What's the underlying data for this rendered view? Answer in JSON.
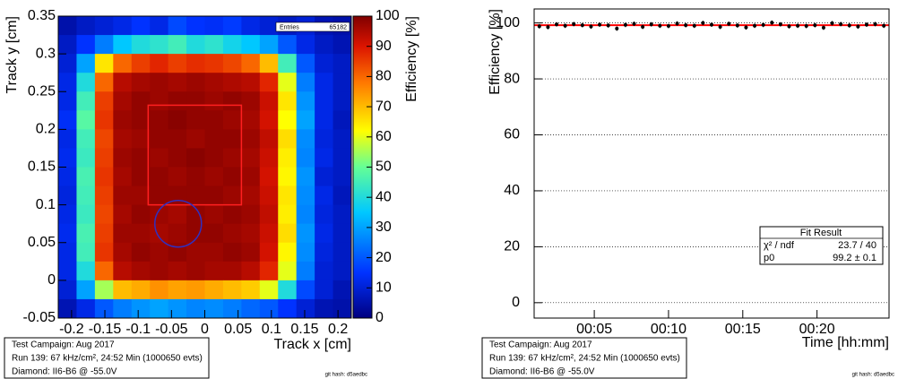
{
  "chart_data": [
    {
      "type": "heatmap",
      "xlabel": "Track x [cm]",
      "ylabel": "Track y [cm]",
      "zlabel": "Efficiency [%]",
      "xlim": [
        -0.22,
        0.22
      ],
      "ylim": [
        -0.05,
        0.35
      ],
      "zlim": [
        0,
        100
      ],
      "xticks": [
        -0.2,
        -0.15,
        -0.1,
        -0.05,
        0,
        0.05,
        0.1,
        0.15,
        0.2
      ],
      "yticks": [
        -0.05,
        0,
        0.05,
        0.1,
        0.15,
        0.2,
        0.25,
        0.3,
        0.35
      ],
      "zticks": [
        0,
        10,
        20,
        30,
        40,
        50,
        60,
        70,
        80,
        90,
        100
      ],
      "stats": {
        "label": "Entries",
        "value": 65182
      },
      "z": [
        [
          5,
          8,
          10,
          12,
          15,
          12,
          18,
          15,
          14,
          16,
          12,
          10,
          8,
          10,
          6,
          5
        ],
        [
          8,
          15,
          25,
          35,
          40,
          42,
          45,
          40,
          42,
          38,
          35,
          30,
          20,
          12,
          8,
          6
        ],
        [
          10,
          30,
          65,
          80,
          85,
          88,
          85,
          87,
          86,
          84,
          80,
          70,
          45,
          20,
          10,
          8
        ],
        [
          12,
          40,
          80,
          94,
          96,
          97,
          96,
          97,
          96,
          95,
          94,
          88,
          60,
          25,
          12,
          8
        ],
        [
          12,
          45,
          85,
          96,
          98,
          97,
          98,
          98,
          97,
          98,
          97,
          92,
          65,
          28,
          12,
          8
        ],
        [
          14,
          48,
          86,
          97,
          98,
          98,
          99,
          98,
          98,
          97,
          96,
          91,
          62,
          30,
          12,
          7
        ],
        [
          12,
          45,
          84,
          96,
          97,
          98,
          98,
          97,
          98,
          98,
          97,
          93,
          66,
          27,
          11,
          8
        ],
        [
          13,
          44,
          85,
          97,
          98,
          97,
          98,
          99,
          98,
          97,
          96,
          92,
          64,
          26,
          12,
          8
        ],
        [
          12,
          46,
          86,
          96,
          98,
          98,
          97,
          98,
          97,
          98,
          97,
          91,
          63,
          28,
          10,
          8
        ],
        [
          11,
          45,
          85,
          97,
          97,
          98,
          98,
          98,
          98,
          97,
          96,
          92,
          65,
          27,
          12,
          7
        ],
        [
          12,
          44,
          84,
          96,
          98,
          97,
          96,
          98,
          97,
          98,
          97,
          93,
          64,
          26,
          11,
          8
        ],
        [
          13,
          46,
          85,
          97,
          97,
          96,
          97,
          98,
          98,
          97,
          96,
          92,
          66,
          28,
          12,
          8
        ],
        [
          12,
          45,
          86,
          96,
          98,
          97,
          98,
          97,
          97,
          98,
          97,
          91,
          63,
          27,
          11,
          8
        ],
        [
          12,
          40,
          80,
          94,
          96,
          97,
          96,
          97,
          96,
          96,
          94,
          88,
          60,
          25,
          10,
          8
        ],
        [
          10,
          30,
          55,
          70,
          72,
          75,
          73,
          74,
          72,
          70,
          68,
          60,
          40,
          18,
          10,
          6
        ],
        [
          6,
          12,
          20,
          25,
          28,
          30,
          28,
          26,
          27,
          25,
          22,
          20,
          15,
          10,
          6,
          5
        ]
      ],
      "info": [
        "Test Campaign: Aug 2017",
        "Run 139:  67 kHz/cm², 24:52 Min (1000650 evts)",
        "Diamond: II6-B6 @ -55.0V"
      ],
      "footer": "git hash: d5aedbc"
    },
    {
      "type": "scatter",
      "xlabel": "Time [hh:mm]",
      "ylabel": "Efficiency [%]",
      "xlim": [
        0.95,
        24.85
      ],
      "ylim": [
        -5.5,
        105
      ],
      "xticks": [
        {
          "value": 5,
          "label": "00:05"
        },
        {
          "value": 10,
          "label": "00:10"
        },
        {
          "value": 15,
          "label": "00:15"
        },
        {
          "value": 20,
          "label": "00:20"
        }
      ],
      "yticks": [
        0,
        20,
        40,
        60,
        80,
        100
      ],
      "grid": true,
      "color": "#000000",
      "x": [
        1.3,
        1.88,
        2.46,
        3.04,
        3.62,
        4.2,
        4.78,
        5.36,
        5.94,
        6.52,
        7.1,
        7.68,
        8.26,
        8.84,
        9.42,
        10,
        10.58,
        11.16,
        11.74,
        12.32,
        12.9,
        13.48,
        14.06,
        14.64,
        15.22,
        15.8,
        16.38,
        16.96,
        17.54,
        18.12,
        18.7,
        19.28,
        19.86,
        20.44,
        21.02,
        21.6,
        22.18,
        22.76,
        23.34,
        23.92,
        24.5
      ],
      "values": [
        98.8,
        98.5,
        99.5,
        99.0,
        99.6,
        99.2,
        98.7,
        99.4,
        99.1,
        98.0,
        99.3,
        99.7,
        98.6,
        99.5,
        99.0,
        98.9,
        99.8,
        99.2,
        99.0,
        100,
        99.4,
        98.6,
        99.7,
        99.1,
        98.4,
        99.0,
        99.3,
        100.1,
        99.5,
        98.8,
        99.0,
        98.9,
        99.2,
        98.3,
        99.9,
        99.6,
        99.1,
        98.7,
        99.4,
        99.6,
        99.0
      ],
      "errors": [
        0.8,
        0.8,
        0.8,
        0.8,
        0.8,
        0.8,
        0.8,
        0.8,
        0.8,
        0.8,
        0.8,
        0.8,
        0.8,
        0.8,
        0.8,
        0.8,
        0.8,
        0.8,
        0.8,
        0.8,
        0.8,
        0.8,
        0.8,
        0.8,
        0.8,
        0.8,
        0.8,
        0.8,
        0.8,
        0.8,
        0.8,
        0.8,
        0.8,
        0.8,
        0.8,
        0.8,
        0.8,
        0.8,
        0.8,
        0.8,
        0.8
      ],
      "fit": {
        "title": "Fit Result",
        "color": "#ff0000",
        "chi2_label": "χ² / ndf",
        "chi2": "23.7 / 40",
        "p0_label": "p0",
        "p0": {
          "value": 99.2,
          "label": "99.2 ± 0.1"
        }
      },
      "info": [
        "Test Campaign: Aug 2017",
        "Run 139:  67 kHz/cm², 24:52 Min (1000650 evts)",
        "Diamond: II6-B6 @ -55.0V"
      ],
      "footer": "git hash: d5aedbc"
    }
  ]
}
